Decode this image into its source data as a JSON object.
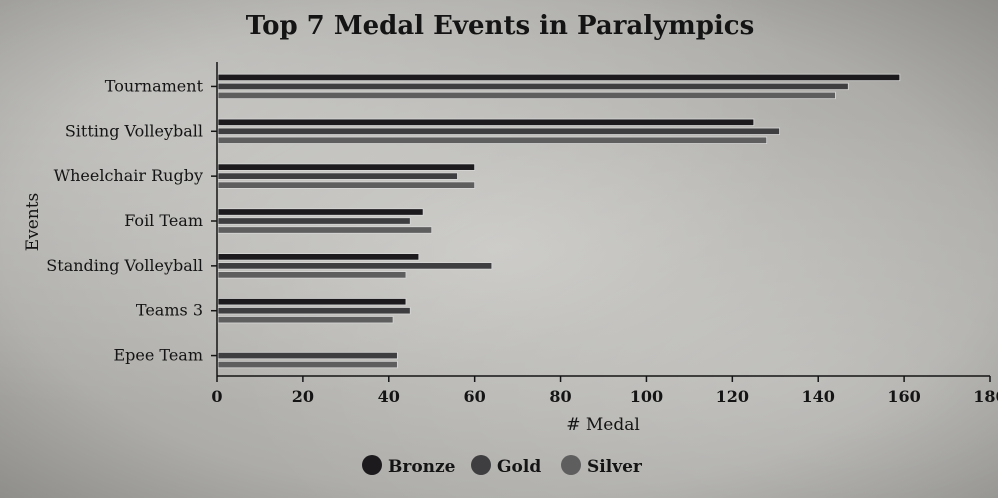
{
  "chart_data": {
    "type": "bar",
    "orientation": "horizontal",
    "title": "Top 7 Medal Events in Paralympics",
    "xlabel": "# Medal",
    "ylabel": "Events",
    "xlim": [
      0,
      180
    ],
    "xticks": [
      0,
      20,
      40,
      60,
      80,
      100,
      120,
      140,
      160,
      180
    ],
    "categories": [
      "Tournament",
      "Sitting Volleyball",
      "Wheelchair Rugby",
      "Foil Team",
      "Standing Volleyball",
      "Teams 3",
      "Epee Team"
    ],
    "series": [
      {
        "name": "Bronze",
        "color": "#1c1a1d",
        "values": [
          159,
          125,
          60,
          48,
          47,
          44,
          0
        ]
      },
      {
        "name": "Gold",
        "color": "#3e3d3f",
        "values": [
          147,
          131,
          56,
          45,
          64,
          45,
          42
        ]
      },
      {
        "name": "Silver",
        "color": "#5e5e5e",
        "values": [
          144,
          128,
          60,
          50,
          44,
          41,
          42
        ]
      }
    ],
    "legend_position": "bottom",
    "grid": false
  }
}
